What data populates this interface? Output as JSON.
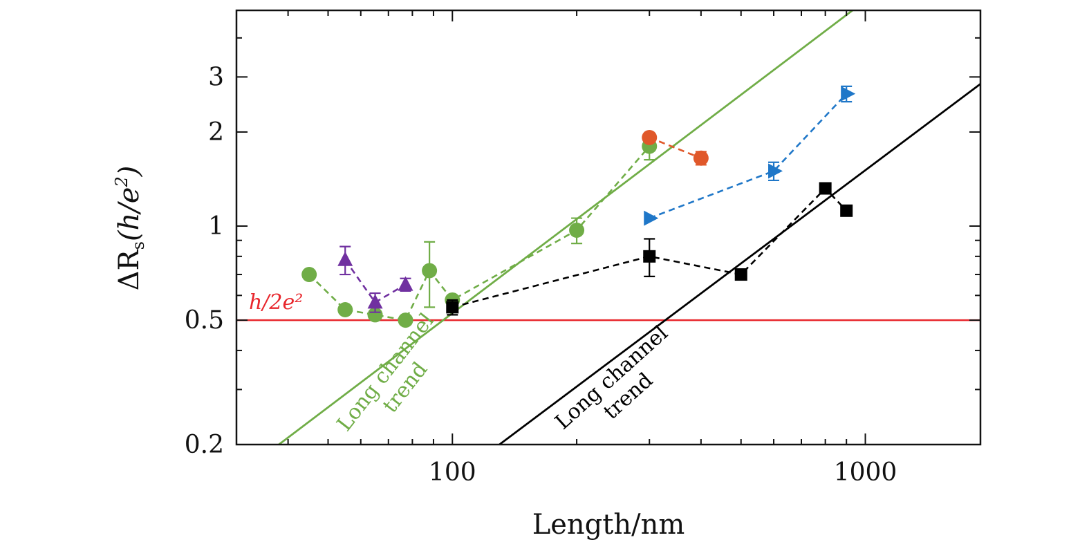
{
  "chart_data": {
    "type": "scatter",
    "title": "",
    "xlabel": "Length/nm",
    "ylabel": "ΔR_s(h/e²)",
    "ylabel_parts": {
      "prefix": "ΔR",
      "sub": "s",
      "mid": "(h/e",
      "sup": "2",
      "suffix": ")"
    },
    "x_scale": "log",
    "y_scale": "log",
    "xlim": [
      30,
      1900
    ],
    "ylim": [
      0.2,
      4.9
    ],
    "x_ticks": [
      100,
      1000
    ],
    "x_tick_labels": [
      "100",
      "1000"
    ],
    "y_ticks": [
      0.2,
      0.5,
      1,
      2,
      3
    ],
    "y_tick_labels": [
      "0.2",
      "0.5",
      "1",
      "2",
      "3"
    ],
    "grid": false,
    "reference_line": {
      "y": 0.5,
      "label": "h/2e²",
      "color": "#e8262c"
    },
    "trend_lines": [
      {
        "label_line1": "Long channel",
        "label_line2": "trend",
        "color": "#70ad47",
        "p1": [
          38,
          0.2
        ],
        "p2": [
          950,
          5.0
        ]
      },
      {
        "label_line1": "Long channel",
        "label_line2": "trend",
        "color": "#000000",
        "p1": [
          130,
          0.2
        ],
        "p2": [
          1900,
          2.85
        ]
      }
    ],
    "series": [
      {
        "color": "#70ad47",
        "marker": "circle",
        "x": [
          45,
          55,
          65,
          77,
          88,
          100,
          200,
          300
        ],
        "y": [
          0.7,
          0.54,
          0.52,
          0.5,
          0.72,
          0.58,
          0.97,
          1.8
        ],
        "err": [
          0,
          0,
          0,
          0,
          0.17,
          0,
          0.09,
          0.17
        ]
      },
      {
        "color": "#7030a0",
        "marker": "triangle",
        "x": [
          55,
          65,
          77
        ],
        "y": [
          0.78,
          0.57,
          0.65
        ],
        "err": [
          0.08,
          0.04,
          0.03
        ]
      },
      {
        "color": "#000000",
        "marker": "square",
        "x": [
          100,
          300,
          500,
          800,
          900
        ],
        "y": [
          0.55,
          0.8,
          0.7,
          1.32,
          1.12
        ],
        "err": [
          0.03,
          0.11,
          0,
          0,
          0
        ]
      },
      {
        "color": "#e0582a",
        "marker": "circle",
        "x": [
          300,
          400
        ],
        "y": [
          1.92,
          1.65
        ],
        "err": [
          0,
          0.08
        ]
      },
      {
        "color": "#1f77c8",
        "marker": "triangle-right",
        "x": [
          300,
          600,
          900
        ],
        "y": [
          1.06,
          1.5,
          2.65
        ],
        "err": [
          0,
          0.1,
          0.15
        ]
      }
    ]
  }
}
